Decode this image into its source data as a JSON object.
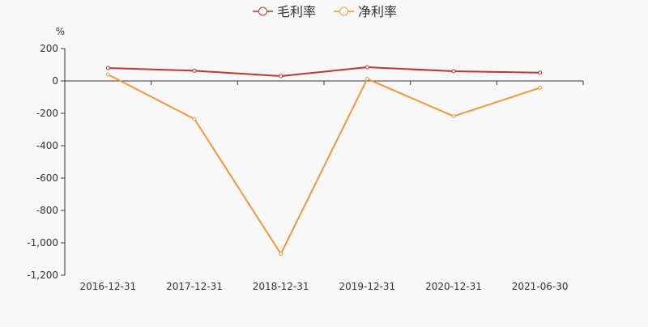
{
  "chart_data": {
    "type": "line",
    "ylabel": "%",
    "categories": [
      "2016-12-31",
      "2017-12-31",
      "2018-12-31",
      "2019-12-31",
      "2020-12-31",
      "2021-06-30"
    ],
    "series": [
      {
        "name": "毛利率",
        "color": "#c23531",
        "values": [
          80,
          63,
          30,
          85,
          60,
          51
        ]
      },
      {
        "name": "净利率",
        "color": "#f89637",
        "values": [
          40,
          -235,
          -1068,
          13,
          -218,
          -42
        ]
      }
    ],
    "ylim": [
      -1200,
      200
    ],
    "yticks": [
      200,
      0,
      -200,
      -400,
      -600,
      -800,
      -1000,
      -1200
    ],
    "ytick_labels": [
      "200",
      "0",
      "-200",
      "-400",
      "-600",
      "-800",
      "-1,000",
      "-1,200"
    ],
    "legend": "top-center",
    "grid": false
  }
}
